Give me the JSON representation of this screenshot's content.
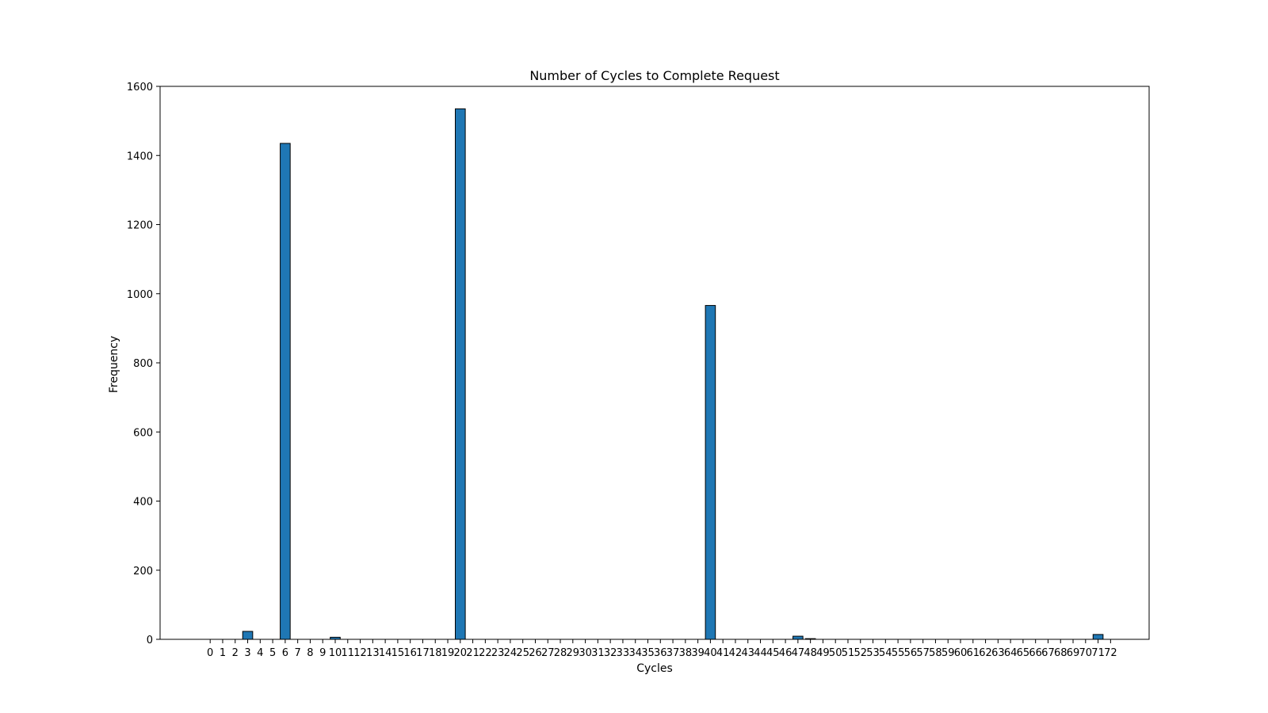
{
  "chart_data": {
    "type": "bar",
    "title": "Number of Cycles to Complete Request",
    "xlabel": "Cycles",
    "ylabel": "Frequency",
    "ylim": [
      0,
      1600
    ],
    "yticks": [
      0,
      200,
      400,
      600,
      800,
      1000,
      1200,
      1400,
      1600
    ],
    "categories": [
      "0",
      "1",
      "2",
      "3",
      "4",
      "5",
      "6",
      "7",
      "8",
      "9",
      "10",
      "11",
      "12",
      "13",
      "14",
      "15",
      "16",
      "17",
      "18",
      "19",
      "20",
      "21",
      "22",
      "23",
      "24",
      "25",
      "26",
      "27",
      "28",
      "29",
      "30",
      "31",
      "32",
      "33",
      "34",
      "35",
      "36",
      "37",
      "38",
      "39",
      "40",
      "41",
      "42",
      "43",
      "44",
      "45",
      "46",
      "47",
      "48",
      "49",
      "50",
      "51",
      "52",
      "53",
      "54",
      "55",
      "56",
      "57",
      "58",
      "59",
      "60",
      "61",
      "62",
      "63",
      "64",
      "65",
      "66",
      "67",
      "68",
      "69",
      "70",
      "71",
      "72"
    ],
    "values": [
      0,
      0,
      0,
      23,
      0,
      0,
      1435,
      0,
      0,
      0,
      6,
      0,
      0,
      0,
      0,
      0,
      0,
      0,
      0,
      0,
      1535,
      0,
      0,
      0,
      0,
      0,
      0,
      0,
      0,
      0,
      0,
      0,
      0,
      0,
      0,
      0,
      0,
      0,
      0,
      0,
      966,
      0,
      0,
      0,
      0,
      0,
      0,
      9,
      2,
      0,
      0,
      0,
      0,
      0,
      0,
      0,
      0,
      0,
      0,
      0,
      0,
      0,
      0,
      0,
      0,
      0,
      0,
      0,
      0,
      0,
      0,
      14,
      0
    ],
    "bar_color": "#1f77b4",
    "edge_color": "#000000",
    "grid": false,
    "legend": "none"
  }
}
